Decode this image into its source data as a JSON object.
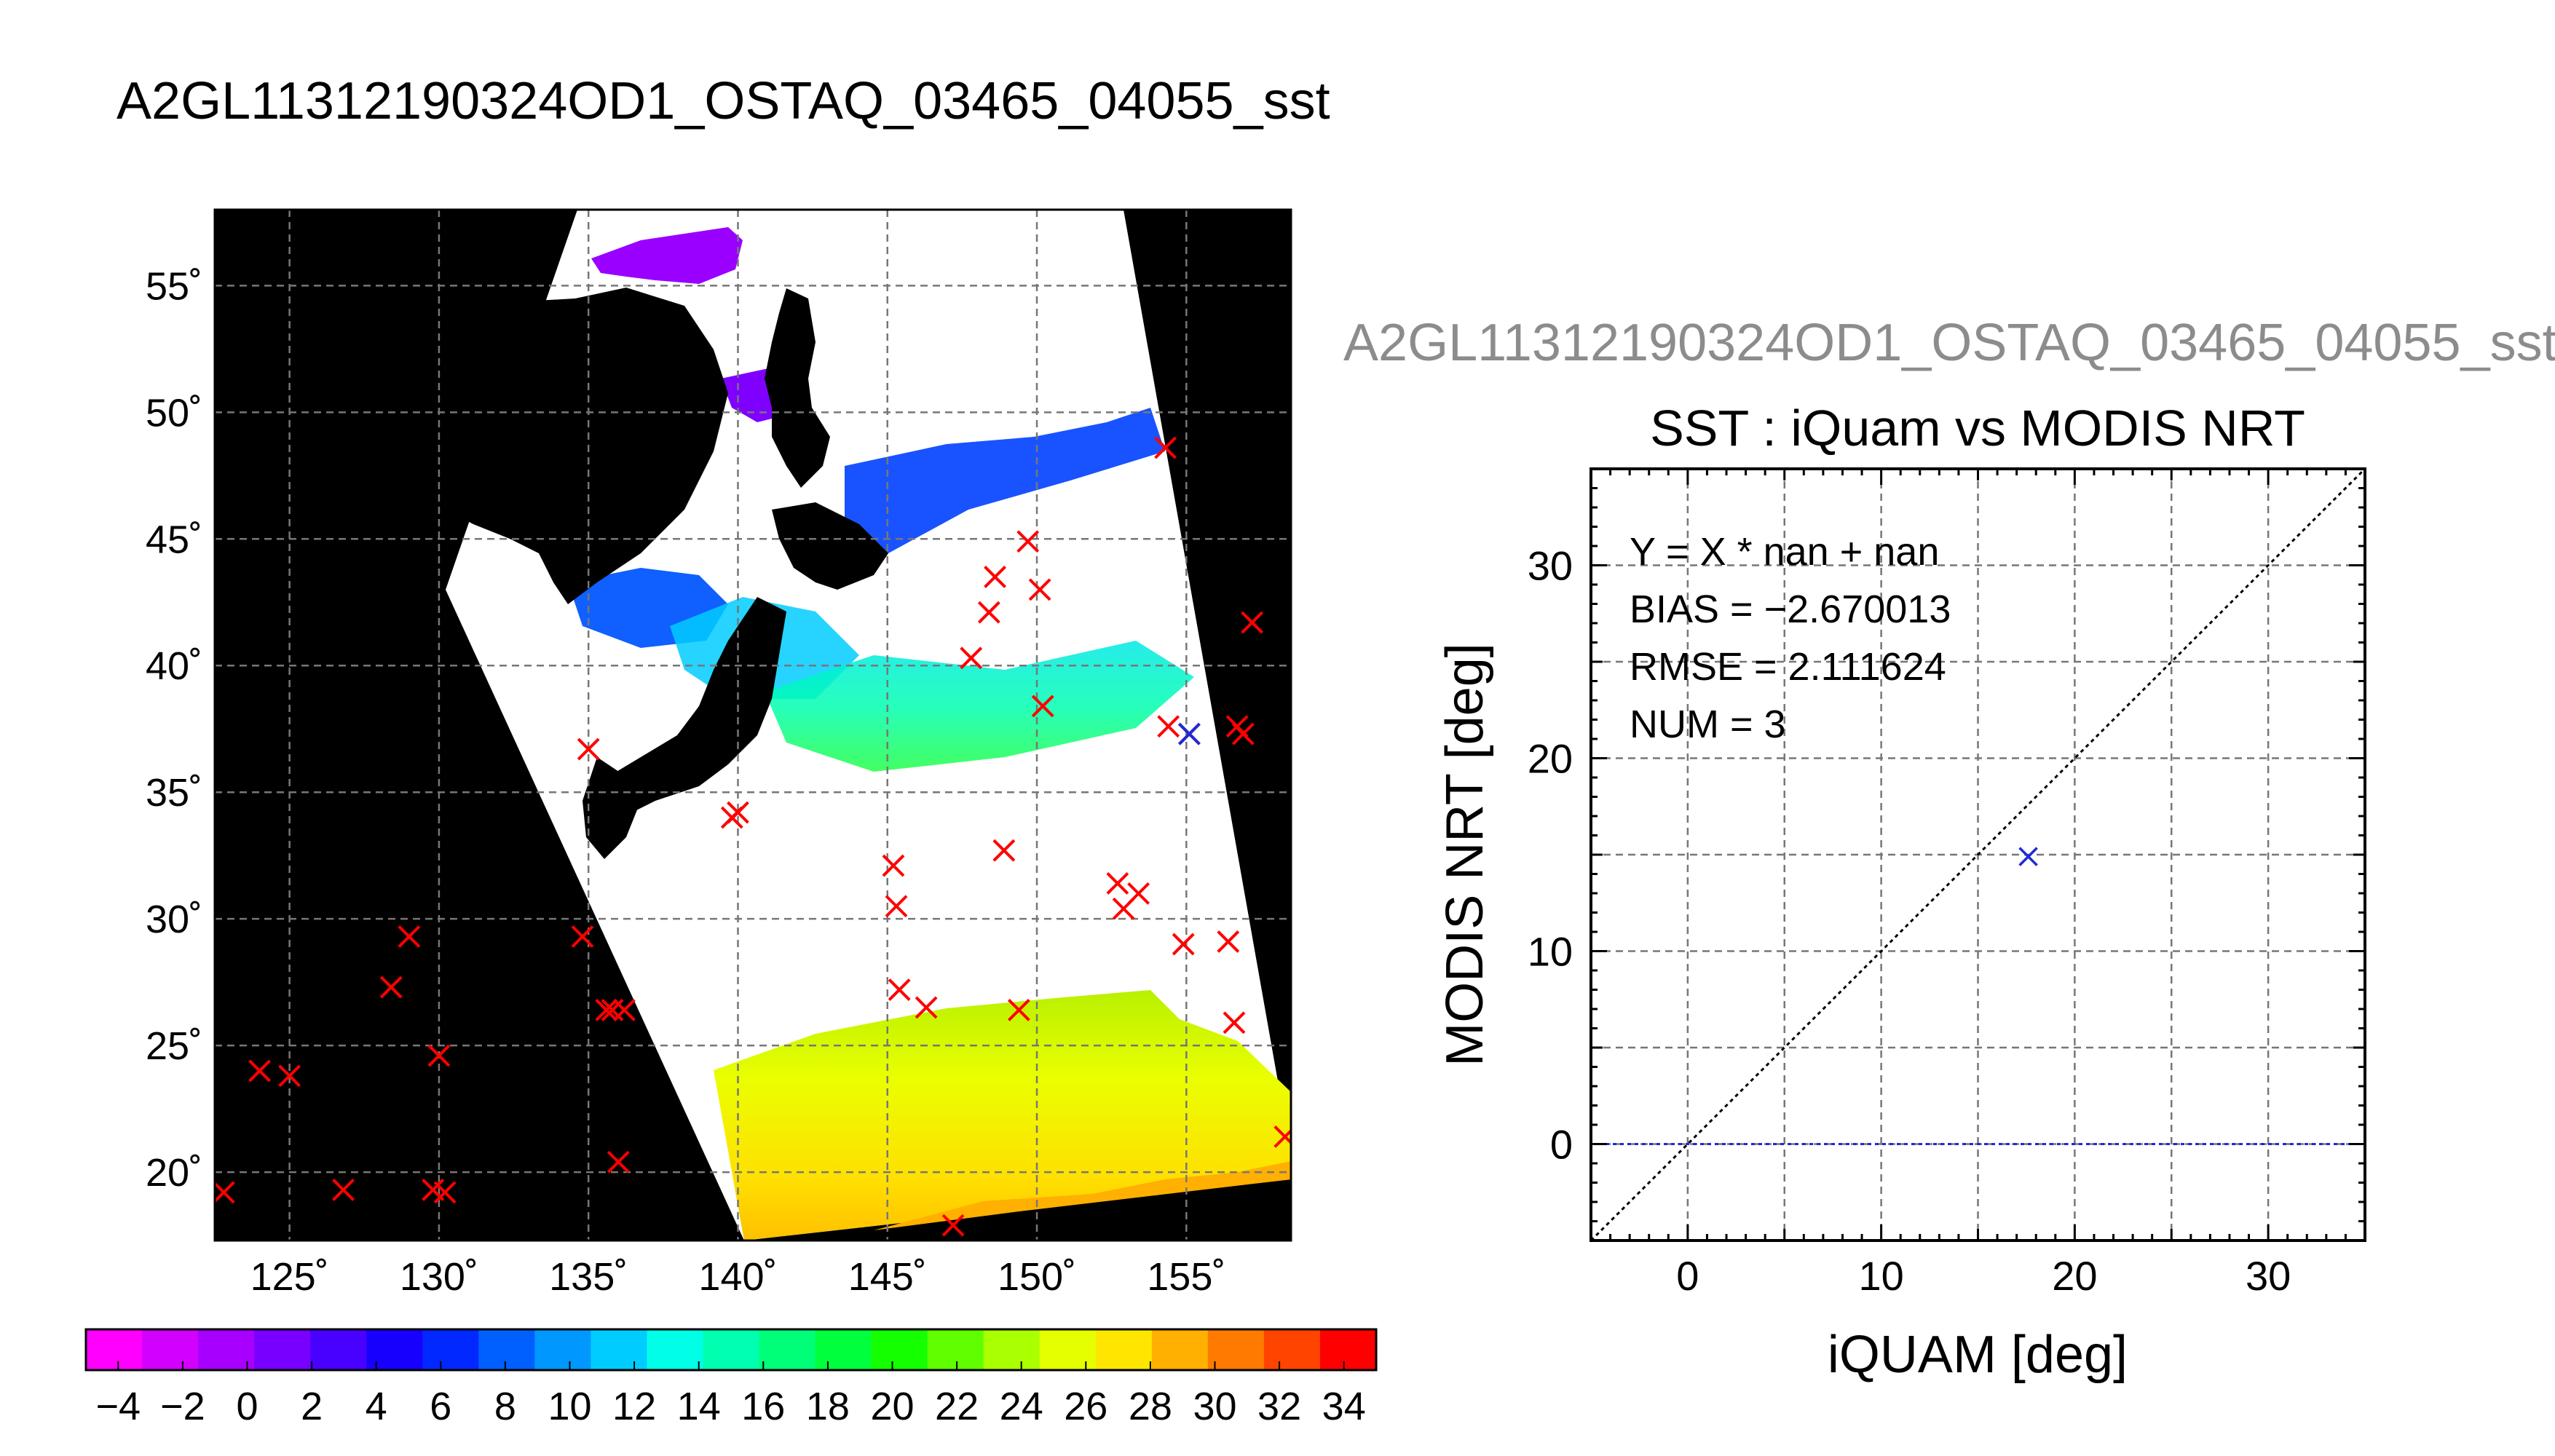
{
  "main_title": "A2GL11312190324OD1_OSTAQ_03465_04055_sst",
  "right_title": "A2GL11312190324OD1_OSTAQ_03465_04055_sst",
  "chart_data": [
    {
      "type": "scatter",
      "kind": "map",
      "x": {
        "label": "",
        "range": [
          122.5,
          158.5
        ],
        "ticks": [
          125,
          130,
          135,
          140,
          145,
          150,
          155
        ],
        "tick_labels": [
          "125˚",
          "130˚",
          "135˚",
          "140˚",
          "145˚",
          "150˚",
          "155˚"
        ]
      },
      "y": {
        "label": "",
        "range": [
          17.3,
          58
        ],
        "ticks": [
          20,
          25,
          30,
          35,
          40,
          45,
          50,
          55
        ],
        "tick_labels": [
          "20˚",
          "25˚",
          "30˚",
          "35˚",
          "40˚",
          "45˚",
          "50˚",
          "55˚"
        ]
      },
      "grid": true,
      "series": [
        {
          "marker": "x",
          "color": "#ff0000",
          "points": [
            [
              122.8,
              19.2
            ],
            [
              124.0,
              24.0
            ],
            [
              125.0,
              23.8
            ],
            [
              126.8,
              19.3
            ],
            [
              128.4,
              27.3
            ],
            [
              129.0,
              29.3
            ],
            [
              129.8,
              19.3
            ],
            [
              130.0,
              24.6
            ],
            [
              130.2,
              19.2
            ],
            [
              134.8,
              29.3
            ],
            [
              135.0,
              36.7
            ],
            [
              135.6,
              26.4
            ],
            [
              135.8,
              26.4
            ],
            [
              136.0,
              20.4
            ],
            [
              136.2,
              26.4
            ],
            [
              139.8,
              34.0
            ],
            [
              140.0,
              34.2
            ],
            [
              145.2,
              32.1
            ],
            [
              145.3,
              30.5
            ],
            [
              145.4,
              27.2
            ],
            [
              146.3,
              26.5
            ],
            [
              147.2,
              17.9
            ],
            [
              147.8,
              40.3
            ],
            [
              148.4,
              42.1
            ],
            [
              148.6,
              43.5
            ],
            [
              148.9,
              32.7
            ],
            [
              149.4,
              26.4
            ],
            [
              149.7,
              44.9
            ],
            [
              150.1,
              43.0
            ],
            [
              150.2,
              38.4
            ],
            [
              152.7,
              31.4
            ],
            [
              152.9,
              30.4
            ],
            [
              153.4,
              31.0
            ],
            [
              154.3,
              48.6
            ],
            [
              154.4,
              37.6
            ],
            [
              154.9,
              29.0
            ],
            [
              155.1,
              37.3
            ],
            [
              156.4,
              29.1
            ],
            [
              156.6,
              25.9
            ],
            [
              156.7,
              37.6
            ],
            [
              156.9,
              37.3
            ],
            [
              157.2,
              41.7
            ],
            [
              158.3,
              21.4
            ]
          ]
        },
        {
          "marker": "x",
          "color": "#1e2bd6",
          "points": [
            [
              155.1,
              37.3
            ]
          ]
        }
      ]
    },
    {
      "type": "colorbar",
      "range": [
        -5,
        35
      ],
      "ticks": [
        -4,
        -2,
        0,
        2,
        4,
        6,
        8,
        10,
        12,
        14,
        16,
        18,
        20,
        22,
        24,
        26,
        28,
        30,
        32,
        34
      ],
      "tick_labels": [
        "−4",
        "−2",
        "0",
        "2",
        "4",
        "6",
        "8",
        "10",
        "12",
        "14",
        "16",
        "18",
        "20",
        "22",
        "24",
        "26",
        "28",
        "30",
        "32",
        "34"
      ],
      "colors": [
        "#ff00ff",
        "#d200ff",
        "#a800ff",
        "#7800ff",
        "#4800ff",
        "#1800ff",
        "#0028ff",
        "#0060ff",
        "#0098ff",
        "#00ccff",
        "#00ffe6",
        "#00ffb0",
        "#00ff78",
        "#00ff3c",
        "#14ff00",
        "#60ff00",
        "#aaff00",
        "#e6ff00",
        "#ffe600",
        "#ffb000",
        "#ff7a00",
        "#ff4400",
        "#ff0000"
      ]
    },
    {
      "type": "scatter",
      "title": "SST : iQuam vs MODIS NRT",
      "xlabel": "iQUAM [deg]",
      "ylabel": "MODIS NRT [deg]",
      "xlim": [
        -5,
        35
      ],
      "ylim": [
        -5,
        35
      ],
      "xticks": [
        0,
        10,
        20,
        30
      ],
      "yticks": [
        0,
        10,
        20,
        30
      ],
      "grid": true,
      "reference_lines": [
        {
          "style": "dotted",
          "color": "#000000",
          "from": [
            -5,
            -5
          ],
          "to": [
            35,
            35
          ]
        },
        {
          "style": "dotted",
          "color": "#1e2bd6",
          "from": [
            -5,
            0
          ],
          "to": [
            35,
            0
          ]
        }
      ],
      "series": [
        {
          "marker": "x",
          "color": "#1e2bd6",
          "x": [
            17.6
          ],
          "y": [
            14.9
          ]
        }
      ],
      "annotations": [
        "Y = X * nan + nan",
        "BIAS = −2.670013",
        "RMSE = 2.111624",
        "NUM = 3"
      ]
    }
  ]
}
